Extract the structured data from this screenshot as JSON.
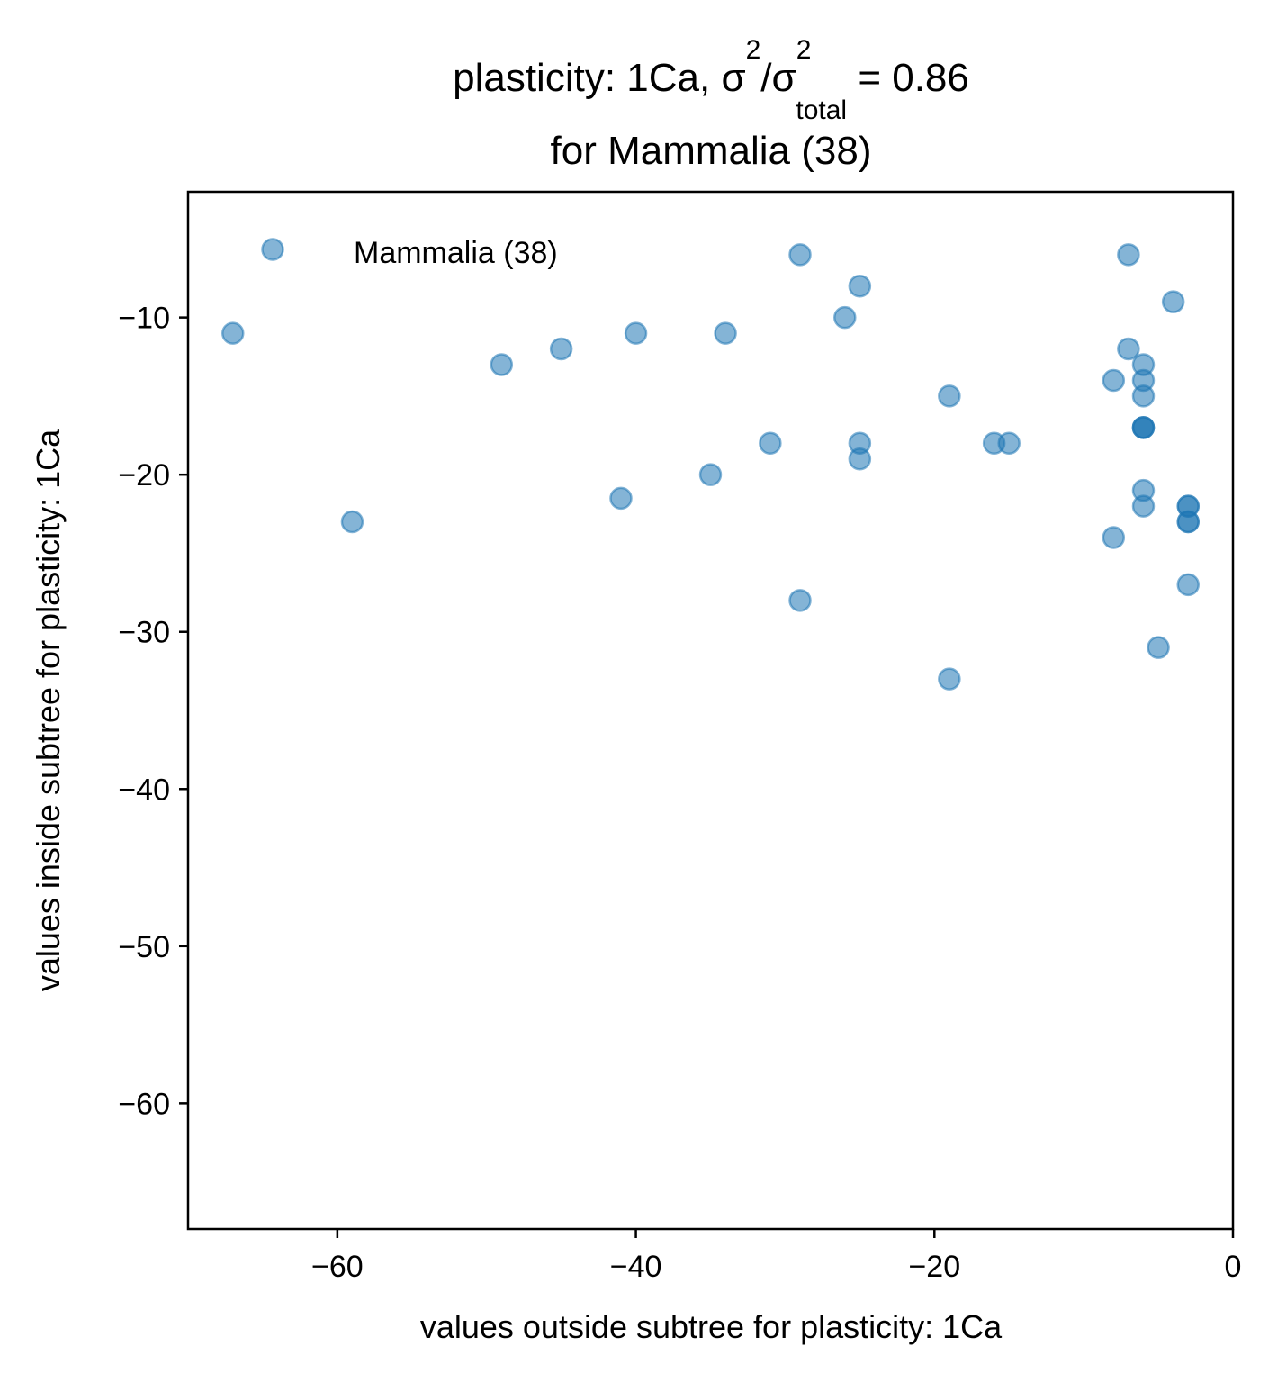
{
  "chart_data": {
    "type": "scatter",
    "title": {
      "line1_prefix": "plasticity: 1Ca, σ",
      "sup1": "2",
      "slash": "/σ",
      "sup2": "2",
      "sub": "total",
      "line1_suffix": "  =  0.86",
      "line2": "for Mammalia (38)"
    },
    "xlabel": "values outside subtree for plasticity: 1Ca",
    "ylabel": "values inside subtree for plasticity: 1Ca",
    "xlim": [
      -70,
      0
    ],
    "ylim": [
      -68,
      -2
    ],
    "xticks": [
      -60,
      -40,
      -20,
      0
    ],
    "xtick_labels": [
      "−60",
      "−40",
      "−20",
      "0"
    ],
    "yticks": [
      -10,
      -20,
      -30,
      -40,
      -50,
      -60
    ],
    "ytick_labels": [
      "−10",
      "−20",
      "−30",
      "−40",
      "−50",
      "−60"
    ],
    "grid": false,
    "legend_position": "top-left",
    "marker_color": "#1f77b4",
    "marker_alpha": 0.55,
    "series": [
      {
        "name": "Mammalia (38)",
        "points": [
          [
            -67,
            -11
          ],
          [
            -59,
            -23
          ],
          [
            -49,
            -13
          ],
          [
            -45,
            -12
          ],
          [
            -41,
            -21.5
          ],
          [
            -40,
            -11
          ],
          [
            -35,
            -20
          ],
          [
            -34,
            -11
          ],
          [
            -31,
            -18
          ],
          [
            -29,
            -6
          ],
          [
            -29,
            -28
          ],
          [
            -26,
            -10
          ],
          [
            -25,
            -8
          ],
          [
            -25,
            -18
          ],
          [
            -25,
            -19
          ],
          [
            -19,
            -15
          ],
          [
            -19,
            -33
          ],
          [
            -16,
            -18
          ],
          [
            -15,
            -18
          ],
          [
            -8,
            -14
          ],
          [
            -8,
            -24
          ],
          [
            -7,
            -6
          ],
          [
            -7,
            -12
          ],
          [
            -6,
            -13
          ],
          [
            -6,
            -14
          ],
          [
            -6,
            -15
          ],
          [
            -6,
            -17
          ],
          [
            -6,
            -17
          ],
          [
            -6,
            -17
          ],
          [
            -6,
            -21
          ],
          [
            -6,
            -22
          ],
          [
            -5,
            -31
          ],
          [
            -4,
            -9
          ],
          [
            -3,
            -22
          ],
          [
            -3,
            -22
          ],
          [
            -3,
            -23
          ],
          [
            -3,
            -23
          ],
          [
            -3,
            -27
          ]
        ]
      }
    ]
  }
}
